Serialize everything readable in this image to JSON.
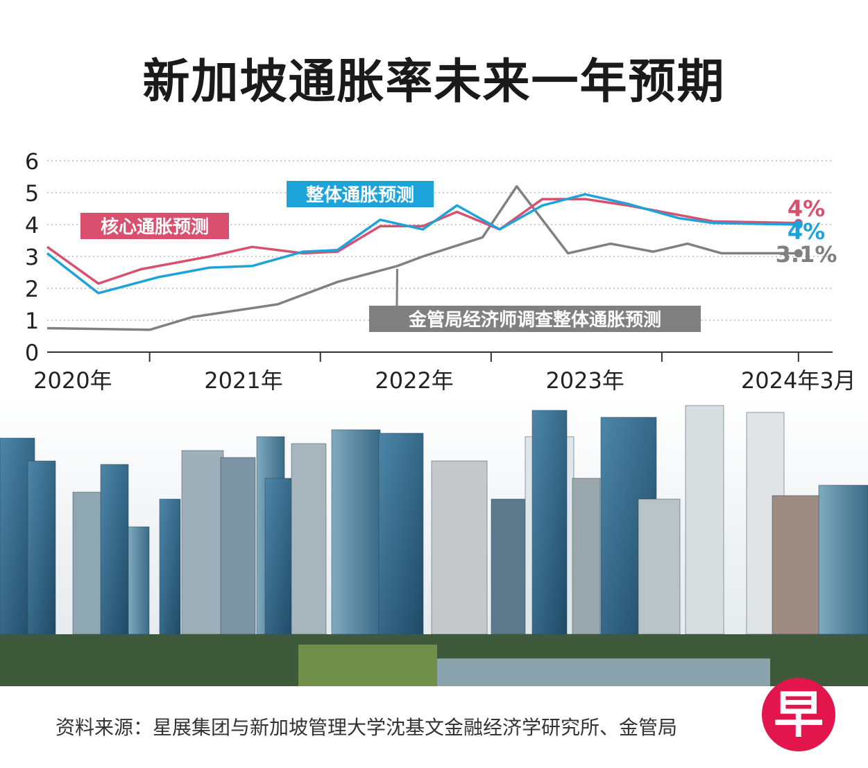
{
  "title": "新加坡通胀率未来一年预期",
  "source": "资料来源：星展集团与新加坡管理大学沈基文金融经济学研究所、金管局",
  "logo_text": "早",
  "colors": {
    "core": "#d9506f",
    "headline": "#1ca3d9",
    "mas": "#808080",
    "grid": "#b8b8b8",
    "text": "#222222"
  },
  "chart_data": {
    "type": "line",
    "title": "新加坡通胀率未来一年预期",
    "ylim": [
      0,
      6
    ],
    "y_ticks": [
      "0",
      "1",
      "2",
      "3",
      "4",
      "5",
      "6"
    ],
    "xlim": [
      2019.8,
      2024.4
    ],
    "x_ticks": [
      2020.4,
      2021.4,
      2022.4,
      2023.4,
      2024.2
    ],
    "x_labels": [
      {
        "x": 2019.95,
        "label": "2020年"
      },
      {
        "x": 2020.95,
        "label": "2021年"
      },
      {
        "x": 2021.95,
        "label": "2022年"
      },
      {
        "x": 2022.95,
        "label": "2023年"
      },
      {
        "x": 2024.2,
        "label": "2024年3月"
      }
    ],
    "series": [
      {
        "name": "核心通胀预测",
        "end_label": "4%",
        "points": [
          [
            2019.8,
            3.3
          ],
          [
            2020.1,
            2.15
          ],
          [
            2020.35,
            2.6
          ],
          [
            2020.75,
            3.0
          ],
          [
            2021.0,
            3.3
          ],
          [
            2021.3,
            3.1
          ],
          [
            2021.5,
            3.15
          ],
          [
            2021.75,
            3.95
          ],
          [
            2022.0,
            3.95
          ],
          [
            2022.2,
            4.4
          ],
          [
            2022.45,
            3.85
          ],
          [
            2022.7,
            4.8
          ],
          [
            2022.95,
            4.8
          ],
          [
            2023.2,
            4.6
          ],
          [
            2023.5,
            4.3
          ],
          [
            2023.7,
            4.1
          ],
          [
            2024.2,
            4.05
          ]
        ]
      },
      {
        "name": "整体通胀预测",
        "end_label": "4%",
        "points": [
          [
            2019.8,
            3.1
          ],
          [
            2020.1,
            1.85
          ],
          [
            2020.45,
            2.35
          ],
          [
            2020.75,
            2.65
          ],
          [
            2021.0,
            2.7
          ],
          [
            2021.3,
            3.15
          ],
          [
            2021.5,
            3.2
          ],
          [
            2021.75,
            4.15
          ],
          [
            2022.0,
            3.85
          ],
          [
            2022.2,
            4.6
          ],
          [
            2022.45,
            3.85
          ],
          [
            2022.7,
            4.6
          ],
          [
            2022.95,
            4.95
          ],
          [
            2023.2,
            4.65
          ],
          [
            2023.5,
            4.2
          ],
          [
            2023.7,
            4.05
          ],
          [
            2024.2,
            4.0
          ]
        ]
      },
      {
        "name": "金管局经济师调查整体通胀预测",
        "end_label": "3.1%",
        "points": [
          [
            2019.8,
            0.75
          ],
          [
            2020.4,
            0.7
          ],
          [
            2020.65,
            1.1
          ],
          [
            2021.15,
            1.5
          ],
          [
            2021.5,
            2.2
          ],
          [
            2021.85,
            2.7
          ],
          [
            2022.0,
            3.0
          ],
          [
            2022.35,
            3.6
          ],
          [
            2022.55,
            5.2
          ],
          [
            2022.85,
            3.1
          ],
          [
            2023.1,
            3.4
          ],
          [
            2023.35,
            3.15
          ],
          [
            2023.55,
            3.4
          ],
          [
            2023.75,
            3.1
          ],
          [
            2024.2,
            3.1
          ]
        ]
      }
    ]
  }
}
